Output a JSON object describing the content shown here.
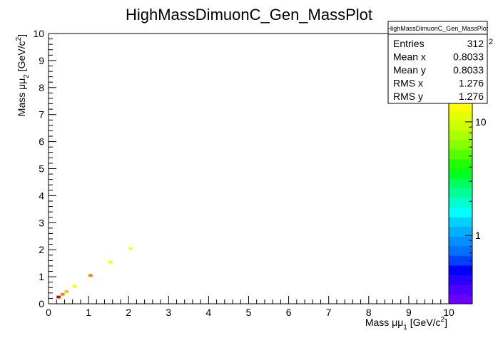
{
  "chart_data": {
    "type": "heatmap",
    "title": "HighMassDimuonC_Gen_MassPlot",
    "xlabel": {
      "main": "Mass μμ",
      "sub": "1",
      "unit_open": " [GeV/c",
      "sup": "2",
      "unit_close": "]"
    },
    "ylabel": {
      "main": "Mass μμ",
      "sub": "2",
      "unit_open": " [GeV/c",
      "sup": "2",
      "unit_close": "]"
    },
    "xlim": [
      0,
      10
    ],
    "ylim": [
      0,
      10
    ],
    "x_ticks": [
      "0",
      "1",
      "2",
      "3",
      "4",
      "5",
      "6",
      "7",
      "8",
      "9",
      "10"
    ],
    "y_ticks": [
      "0",
      "1",
      "2",
      "3",
      "4",
      "5",
      "6",
      "7",
      "8",
      "9",
      "10"
    ],
    "grid": false,
    "bin_size": 0.1,
    "cells": [
      {
        "x": 0.25,
        "y": 0.25,
        "count": 55
      },
      {
        "x": 0.35,
        "y": 0.35,
        "count": 30
      },
      {
        "x": 0.45,
        "y": 0.45,
        "count": 20
      },
      {
        "x": 0.65,
        "y": 0.65,
        "count": 15
      },
      {
        "x": 1.05,
        "y": 1.05,
        "count": 30
      },
      {
        "x": 1.55,
        "y": 1.55,
        "count": 15
      },
      {
        "x": 2.05,
        "y": 2.05,
        "count": 15
      }
    ],
    "colorbar": {
      "scale": "log",
      "range": [
        0.25,
        60
      ],
      "tick_labels": [
        {
          "value": 1,
          "label": "1"
        },
        {
          "value": 10,
          "label": "10"
        }
      ],
      "top_label_partial": "2",
      "colors": [
        "#6a00ff",
        "#4c00ff",
        "#2a00ff",
        "#0000ff",
        "#0040ff",
        "#0070ff",
        "#0090ff",
        "#00b0ff",
        "#00d0ff",
        "#00ffff",
        "#00ffd0",
        "#00ff99",
        "#00ff60",
        "#00ff20",
        "#20ff00",
        "#55ff00",
        "#88ff00",
        "#aaff00",
        "#ccff00",
        "#e6ff00",
        "#ffff00",
        "#ffe000",
        "#ffc000",
        "#ffa000",
        "#ff8000",
        "#ff5000",
        "#ff2000",
        "#e00000"
      ]
    },
    "stats_box": {
      "title": "HighMassDimuonC_Gen_MassPlot",
      "rows": [
        {
          "label": "Entries",
          "value": "312"
        },
        {
          "label": "Mean x",
          "value": "0.8033"
        },
        {
          "label": "Mean y",
          "value": "0.8033"
        },
        {
          "label": "RMS x",
          "value": "1.276"
        },
        {
          "label": "RMS y",
          "value": "1.276"
        }
      ]
    }
  }
}
